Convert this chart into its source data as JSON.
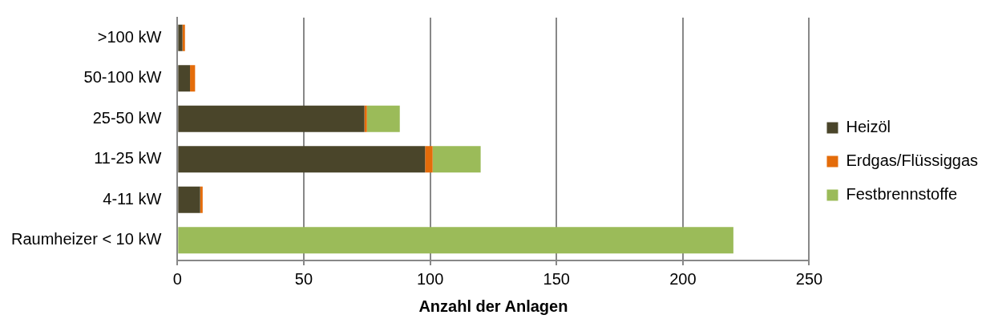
{
  "chart_data": {
    "type": "bar",
    "orientation": "horizontal",
    "stacked": true,
    "xlabel": "Anzahl der Anlagen",
    "categories": [
      ">100 kW",
      "50-100 kW",
      "25-50 kW",
      "11-25 kW",
      "4-11 kW",
      "Raumheizer < 10 kW"
    ],
    "series": [
      {
        "name": "Heizöl",
        "color": "#4a452a",
        "values": [
          2,
          5,
          74,
          98,
          9,
          0
        ]
      },
      {
        "name": "Erdgas/Flüssiggas",
        "color": "#e46c0a",
        "values": [
          1,
          2,
          1,
          3,
          1,
          0
        ]
      },
      {
        "name": "Festbrennstoffe",
        "color": "#9bbb59",
        "values": [
          0,
          0,
          13,
          19,
          0,
          220
        ]
      }
    ],
    "xlim": [
      0,
      250
    ],
    "xticks": [
      0,
      50,
      100,
      150,
      200,
      250
    ],
    "grid": "x",
    "legend": "right"
  }
}
